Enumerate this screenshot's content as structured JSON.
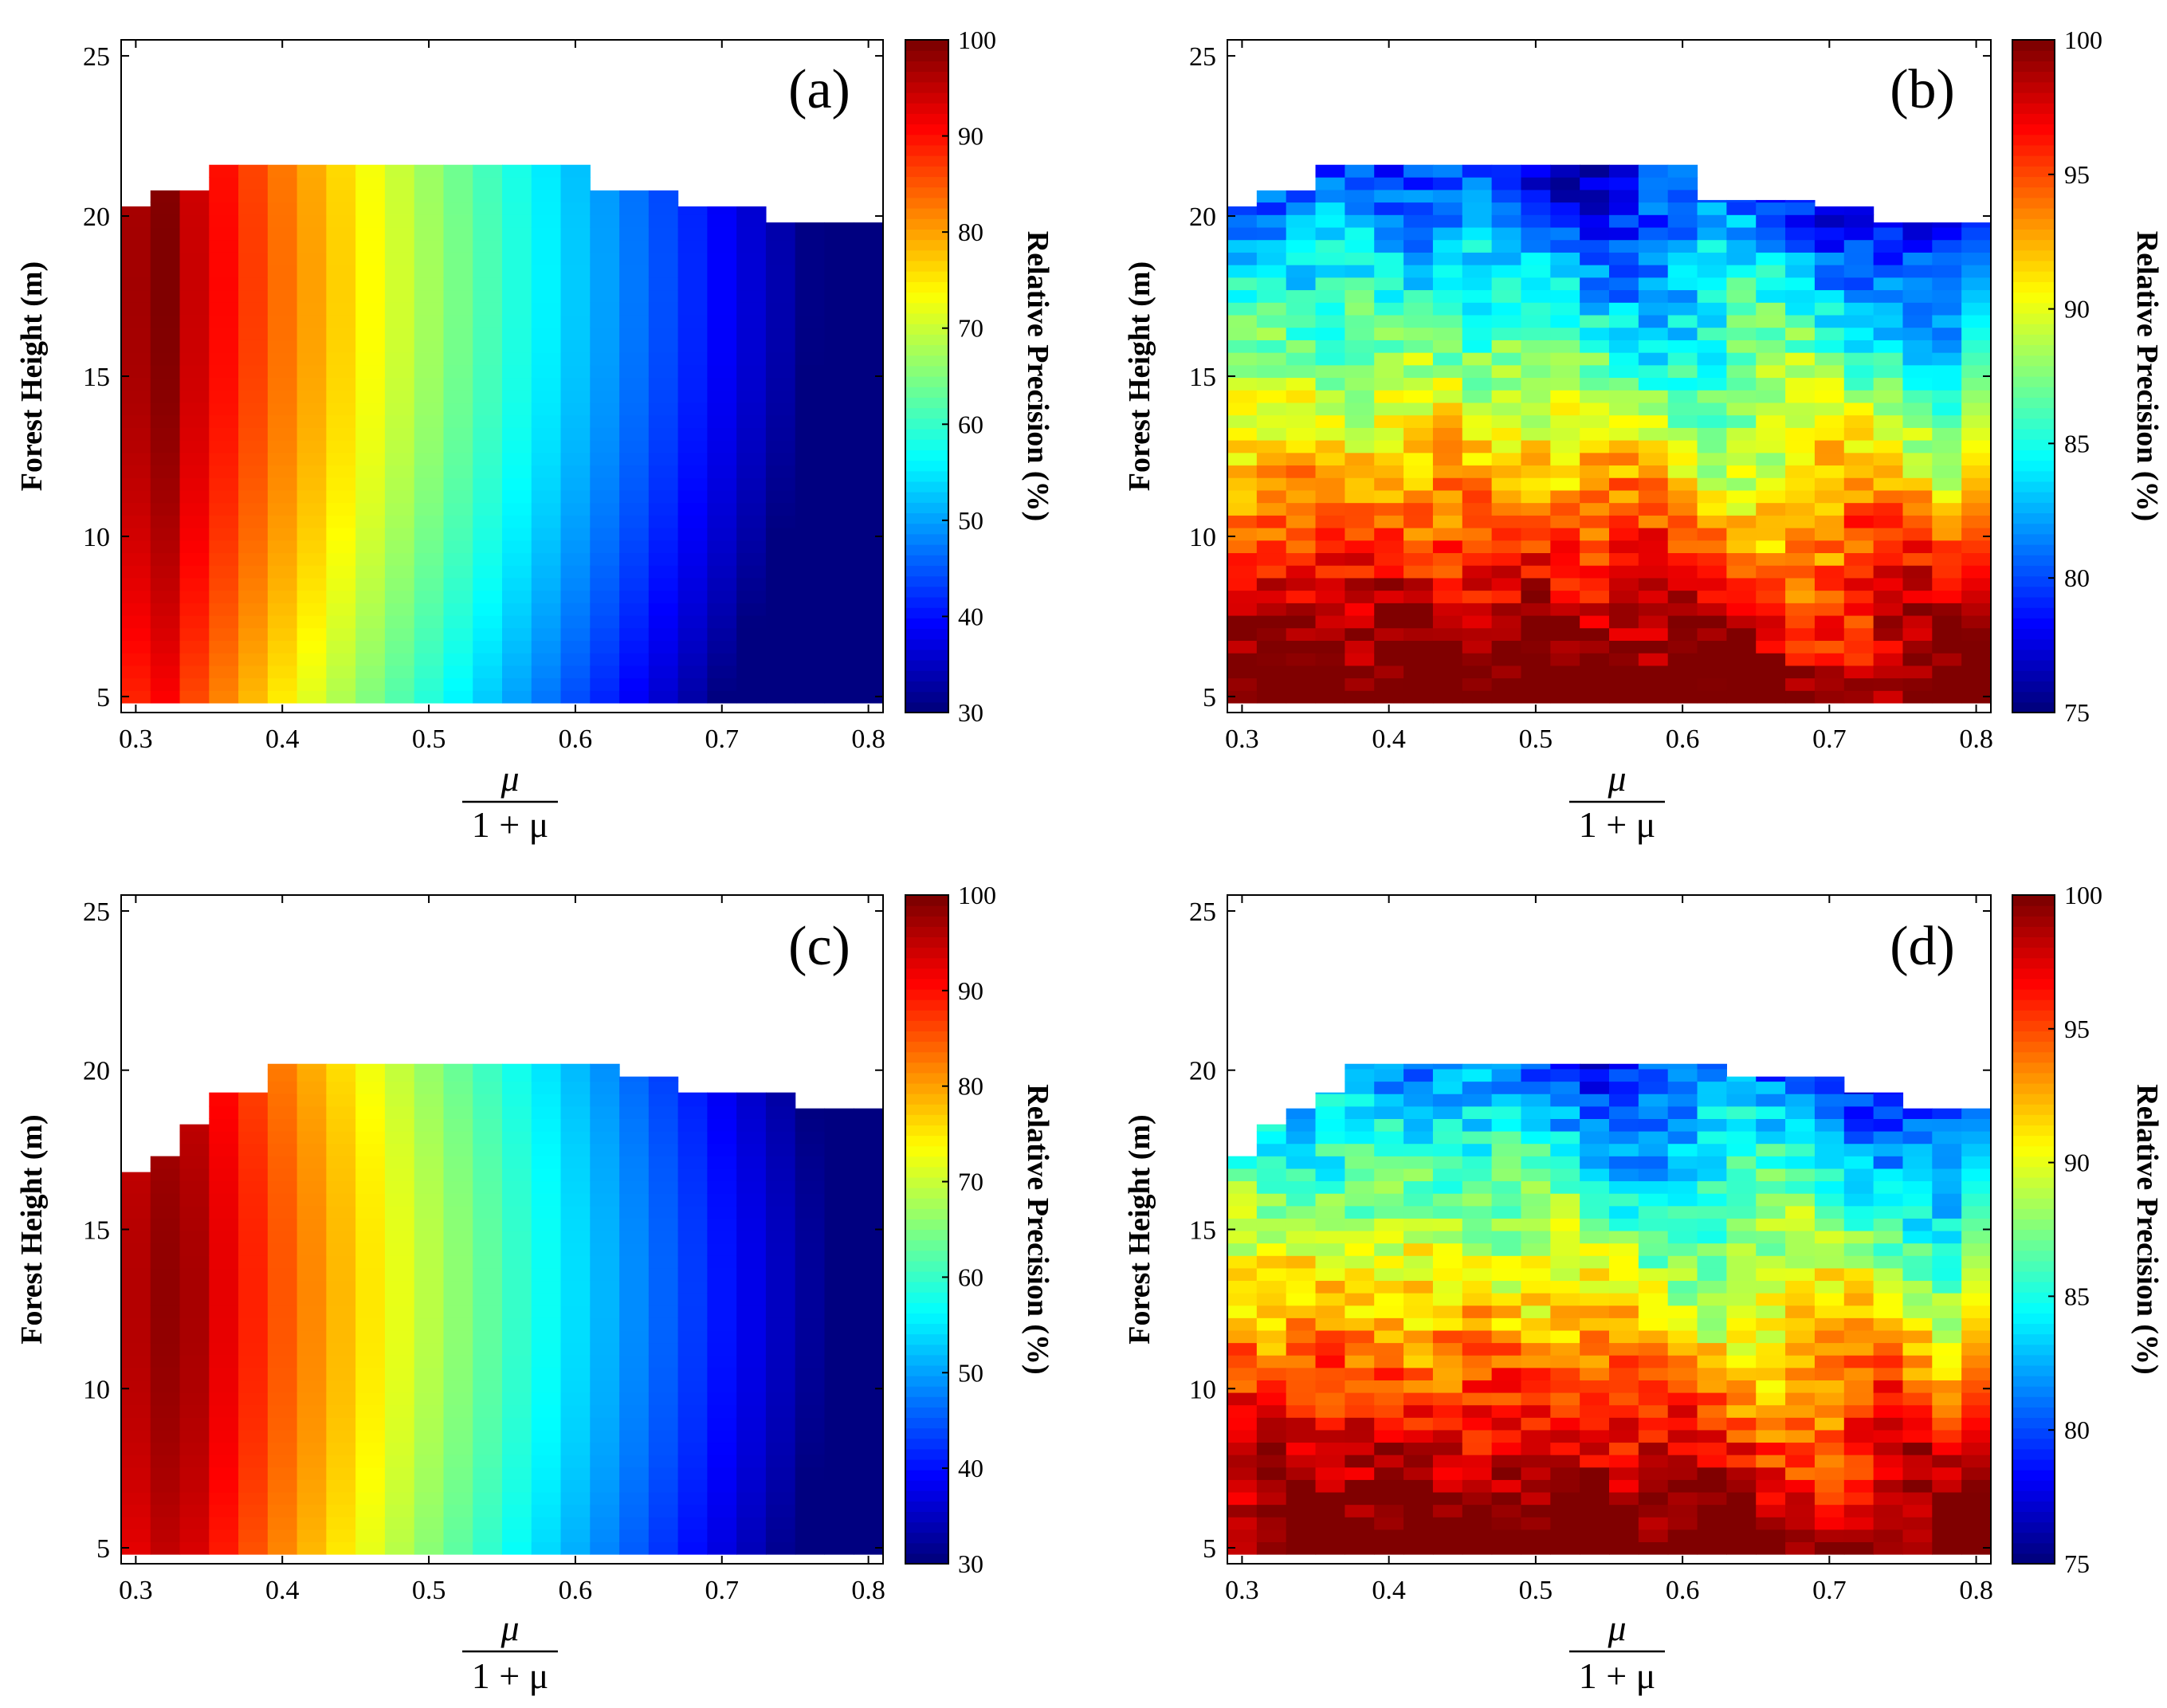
{
  "chart_data": [
    {
      "type": "heatmap",
      "panel_label": "(a)",
      "ylabel": "Forest Height (m)",
      "xlabel_numerator": "μ",
      "xlabel_denominator": "1 + μ",
      "colorbar_label": "Relative Precision (%)",
      "x_range": [
        0.29,
        0.81
      ],
      "y_range": [
        4.5,
        25.5
      ],
      "x_ticks": [
        "0.3",
        "0.4",
        "0.5",
        "0.6",
        "0.7",
        "0.8"
      ],
      "y_ticks": [
        "5",
        "10",
        "15",
        "20",
        "25"
      ],
      "colorbar_range": [
        30,
        100
      ],
      "colorbar_ticks": [
        "30",
        "40",
        "50",
        "60",
        "70",
        "80",
        "90",
        "100"
      ],
      "model": "smooth",
      "peak_x": 0.32,
      "peak_y": 18,
      "top_boundary": [
        [
          0.29,
          19.8
        ],
        [
          0.3,
          20.3
        ],
        [
          0.32,
          20.8
        ],
        [
          0.35,
          21.6
        ],
        [
          0.61,
          21.6
        ],
        [
          0.62,
          20.8
        ],
        [
          0.66,
          20.3
        ],
        [
          0.74,
          19.8
        ],
        [
          0.81,
          19.8
        ]
      ]
    },
    {
      "type": "heatmap",
      "panel_label": "(b)",
      "ylabel": "Forest Height (m)",
      "xlabel_numerator": "μ",
      "xlabel_denominator": "1 + μ",
      "colorbar_label": "Relative Precision (%)",
      "x_range": [
        0.29,
        0.81
      ],
      "y_range": [
        4.5,
        25.5
      ],
      "x_ticks": [
        "0.3",
        "0.4",
        "0.5",
        "0.6",
        "0.7",
        "0.8"
      ],
      "y_ticks": [
        "5",
        "10",
        "15",
        "20",
        "25"
      ],
      "colorbar_range": [
        75,
        100
      ],
      "colorbar_ticks": [
        "75",
        "80",
        "85",
        "90",
        "95",
        "100"
      ],
      "model": "noisy",
      "band_centers": [
        0.34,
        0.44,
        0.54,
        0.64,
        0.8
      ],
      "top_boundary": [
        [
          0.29,
          19.8
        ],
        [
          0.3,
          20.3
        ],
        [
          0.32,
          20.8
        ],
        [
          0.34,
          21.2
        ],
        [
          0.36,
          21.6
        ],
        [
          0.61,
          21.6
        ],
        [
          0.62,
          20.5
        ],
        [
          0.69,
          20.3
        ],
        [
          0.74,
          19.8
        ],
        [
          0.81,
          19.8
        ]
      ]
    },
    {
      "type": "heatmap",
      "panel_label": "(c)",
      "ylabel": "Forest Height (m)",
      "xlabel_numerator": "μ",
      "xlabel_denominator": "1 + μ",
      "colorbar_label": "Relative Precision (%)",
      "x_range": [
        0.29,
        0.81
      ],
      "y_range": [
        4.5,
        25.5
      ],
      "x_ticks": [
        "0.3",
        "0.4",
        "0.5",
        "0.6",
        "0.7",
        "0.8"
      ],
      "y_ticks": [
        "5",
        "10",
        "15",
        "20",
        "25"
      ],
      "colorbar_range": [
        30,
        100
      ],
      "colorbar_ticks": [
        "30",
        "40",
        "50",
        "60",
        "70",
        "80",
        "90",
        "100"
      ],
      "model": "smooth",
      "peak_x": 0.33,
      "peak_y": 13,
      "top_boundary": [
        [
          0.29,
          16.8
        ],
        [
          0.31,
          17.3
        ],
        [
          0.33,
          18.3
        ],
        [
          0.36,
          19.3
        ],
        [
          0.39,
          20.2
        ],
        [
          0.63,
          20.2
        ],
        [
          0.64,
          19.8
        ],
        [
          0.67,
          19.3
        ],
        [
          0.76,
          18.8
        ],
        [
          0.81,
          18.8
        ]
      ]
    },
    {
      "type": "heatmap",
      "panel_label": "(d)",
      "ylabel": "Forest Height (m)",
      "xlabel_numerator": "μ",
      "xlabel_denominator": "1 + μ",
      "colorbar_label": "Relative Precision (%)",
      "x_range": [
        0.29,
        0.81
      ],
      "y_range": [
        4.5,
        25.5
      ],
      "x_ticks": [
        "0.3",
        "0.4",
        "0.5",
        "0.6",
        "0.7",
        "0.8"
      ],
      "y_ticks": [
        "5",
        "10",
        "15",
        "20",
        "25"
      ],
      "colorbar_range": [
        75,
        100
      ],
      "colorbar_ticks": [
        "75",
        "80",
        "85",
        "90",
        "95",
        "100"
      ],
      "model": "noisy",
      "band_centers": [
        0.35,
        0.44,
        0.54,
        0.64,
        0.8
      ],
      "top_boundary": [
        [
          0.29,
          16.8
        ],
        [
          0.3,
          17.3
        ],
        [
          0.31,
          18.3
        ],
        [
          0.33,
          18.8
        ],
        [
          0.35,
          19.3
        ],
        [
          0.37,
          19.8
        ],
        [
          0.38,
          20.2
        ],
        [
          0.63,
          20.2
        ],
        [
          0.64,
          19.8
        ],
        [
          0.72,
          19.3
        ],
        [
          0.76,
          18.8
        ],
        [
          0.81,
          18.8
        ]
      ]
    }
  ]
}
